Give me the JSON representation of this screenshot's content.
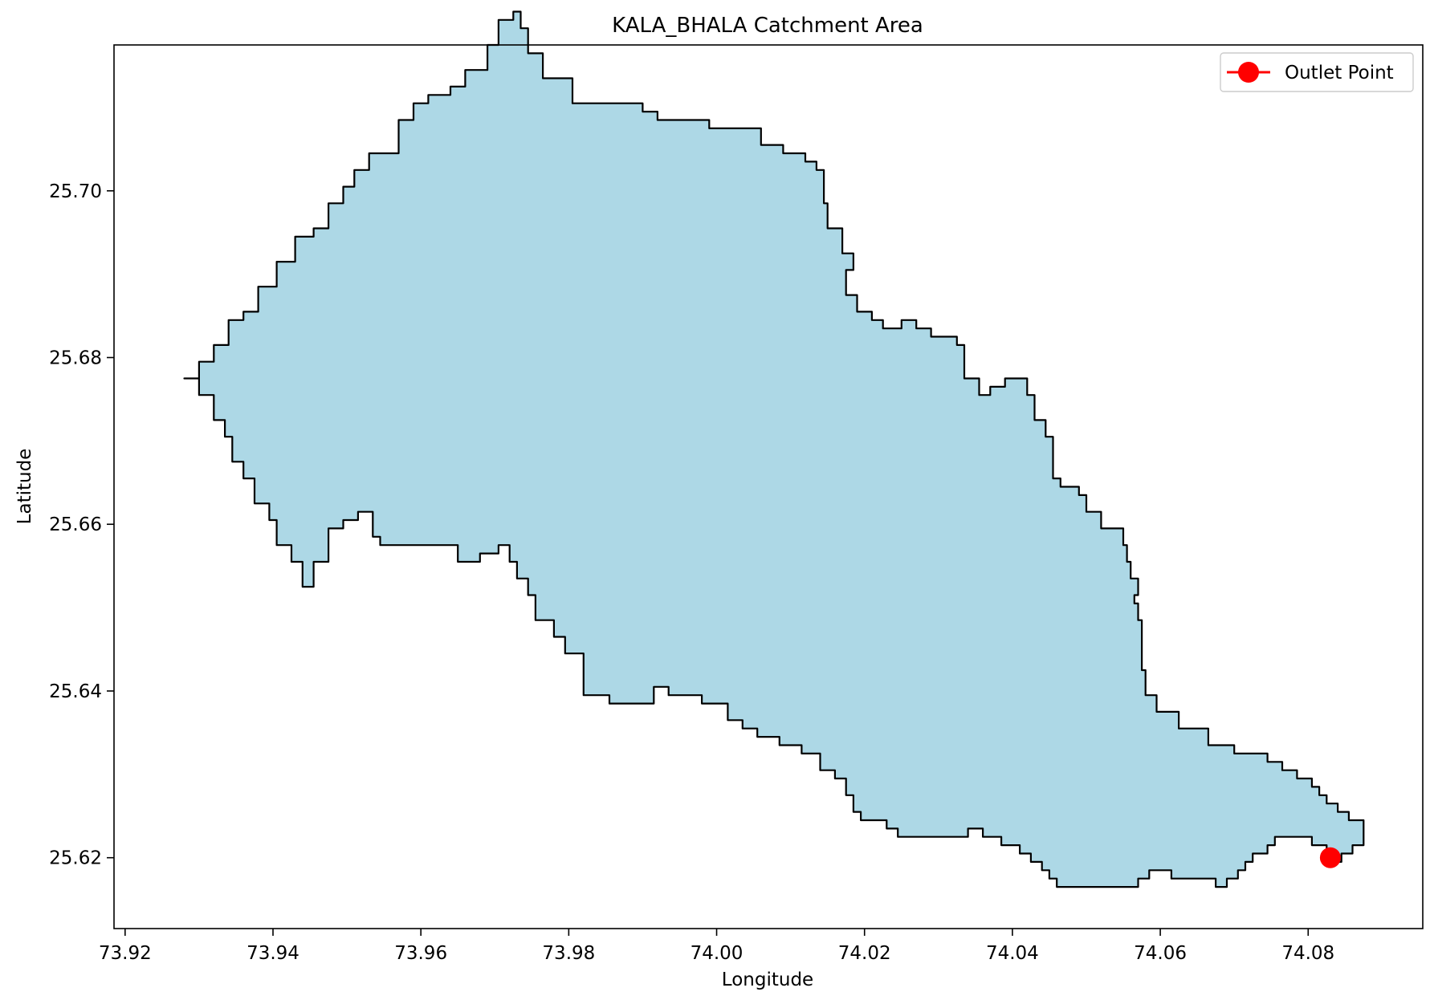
{
  "figure": {
    "title": "KALA_BHALA Catchment Area",
    "xlabel": "Longitude",
    "ylabel": "Latitude"
  },
  "colors": {
    "catchment_fill": "#add8e6",
    "catchment_edge": "#000000",
    "outlet": "#ff0000"
  },
  "map": {
    "xlim": [
      73.9185,
      74.0955
    ],
    "ylim": [
      25.6115,
      25.7175
    ],
    "xticks": [
      73.92,
      73.94,
      73.96,
      73.98,
      74.0,
      74.02,
      74.04,
      74.06,
      74.08
    ],
    "xtick_labels": [
      "73.92",
      "73.94",
      "73.96",
      "73.98",
      "74.00",
      "74.02",
      "74.04",
      "74.06",
      "74.08"
    ],
    "yticks": [
      25.62,
      25.64,
      25.66,
      25.68,
      25.7
    ],
    "ytick_labels": [
      "25.62",
      "25.64",
      "25.66",
      "25.68",
      "25.70"
    ],
    "legend": {
      "position": "top-right",
      "label": "Outlet Point"
    },
    "outlet_point": {
      "lon": 74.083,
      "lat": 25.62
    },
    "boundary": [
      [
        73.928,
        25.6775
      ],
      [
        73.93,
        25.6795
      ],
      [
        73.932,
        25.6815
      ],
      [
        73.934,
        25.6845
      ],
      [
        73.936,
        25.6855
      ],
      [
        73.938,
        25.6885
      ],
      [
        73.9405,
        25.6915
      ],
      [
        73.943,
        25.6945
      ],
      [
        73.9455,
        25.6955
      ],
      [
        73.9475,
        25.6985
      ],
      [
        73.9495,
        25.7005
      ],
      [
        73.951,
        25.7025
      ],
      [
        73.953,
        25.7045
      ],
      [
        73.957,
        25.7085
      ],
      [
        73.959,
        25.7105
      ],
      [
        73.961,
        25.7115
      ],
      [
        73.964,
        25.7125
      ],
      [
        73.966,
        25.7145
      ],
      [
        73.969,
        25.7175
      ],
      [
        73.9705,
        25.7205
      ],
      [
        73.9725,
        25.7215
      ],
      [
        73.9735,
        25.7195
      ],
      [
        73.9745,
        25.7165
      ],
      [
        73.9765,
        25.7135
      ],
      [
        73.9805,
        25.7105
      ],
      [
        73.983,
        25.7105
      ],
      [
        73.986,
        25.7105
      ],
      [
        73.99,
        25.7095
      ],
      [
        73.992,
        25.7085
      ],
      [
        73.996,
        25.7085
      ],
      [
        73.999,
        25.7075
      ],
      [
        74.002,
        25.7075
      ],
      [
        74.006,
        25.7055
      ],
      [
        74.009,
        25.7045
      ],
      [
        74.012,
        25.7035
      ],
      [
        74.0135,
        25.7025
      ],
      [
        74.0145,
        25.6985
      ],
      [
        74.015,
        25.6955
      ],
      [
        74.017,
        25.6925
      ],
      [
        74.0185,
        25.6905
      ],
      [
        74.0175,
        25.6875
      ],
      [
        74.019,
        25.6855
      ],
      [
        74.021,
        25.6845
      ],
      [
        74.0225,
        25.6835
      ],
      [
        74.024,
        25.6835
      ],
      [
        74.025,
        25.6845
      ],
      [
        74.027,
        25.6835
      ],
      [
        74.029,
        25.6825
      ],
      [
        74.031,
        25.6825
      ],
      [
        74.0325,
        25.6815
      ],
      [
        74.0335,
        25.6795
      ],
      [
        74.0335,
        25.6775
      ],
      [
        74.0355,
        25.6755
      ],
      [
        74.037,
        25.6765
      ],
      [
        74.039,
        25.6775
      ],
      [
        74.041,
        25.6775
      ],
      [
        74.042,
        25.6755
      ],
      [
        74.043,
        25.6725
      ],
      [
        74.0445,
        25.6705
      ],
      [
        74.0455,
        25.6675
      ],
      [
        74.0455,
        25.6655
      ],
      [
        74.0465,
        25.6645
      ],
      [
        74.049,
        25.6635
      ],
      [
        74.05,
        25.6615
      ],
      [
        74.052,
        25.6595
      ],
      [
        74.055,
        25.6575
      ],
      [
        74.0555,
        25.6555
      ],
      [
        74.056,
        25.6535
      ],
      [
        74.057,
        25.6515
      ],
      [
        74.0565,
        25.6505
      ],
      [
        74.057,
        25.6485
      ],
      [
        74.0575,
        25.6455
      ],
      [
        74.0575,
        25.6425
      ],
      [
        74.058,
        25.6395
      ],
      [
        74.0595,
        25.6375
      ],
      [
        74.0625,
        25.6355
      ],
      [
        74.0645,
        25.6355
      ],
      [
        74.0665,
        25.6335
      ],
      [
        74.068,
        25.6335
      ],
      [
        74.07,
        25.6325
      ],
      [
        74.0725,
        25.6325
      ],
      [
        74.0745,
        25.6315
      ],
      [
        74.0765,
        25.6305
      ],
      [
        74.0785,
        25.6295
      ],
      [
        74.0805,
        25.6285
      ],
      [
        74.0815,
        25.6275
      ],
      [
        74.0825,
        25.6265
      ],
      [
        74.084,
        25.6255
      ],
      [
        74.0855,
        25.6245
      ],
      [
        74.0875,
        25.6225
      ],
      [
        74.0875,
        25.6215
      ],
      [
        74.086,
        25.6205
      ],
      [
        74.0845,
        25.6195
      ],
      [
        74.0835,
        25.6205
      ],
      [
        74.0825,
        25.6215
      ],
      [
        74.0805,
        25.6225
      ],
      [
        74.077,
        25.6225
      ],
      [
        74.0755,
        25.6215
      ],
      [
        74.0745,
        25.6205
      ],
      [
        74.0725,
        25.6195
      ],
      [
        74.0715,
        25.6185
      ],
      [
        74.0705,
        25.6175
      ],
      [
        74.069,
        25.6165
      ],
      [
        74.0675,
        25.6175
      ],
      [
        74.0655,
        25.6175
      ],
      [
        74.063,
        25.6175
      ],
      [
        74.0615,
        25.6185
      ],
      [
        74.0595,
        25.6185
      ],
      [
        74.0585,
        25.6175
      ],
      [
        74.057,
        25.6165
      ],
      [
        74.055,
        25.6165
      ],
      [
        74.052,
        25.6165
      ],
      [
        74.0485,
        25.6165
      ],
      [
        74.046,
        25.6175
      ],
      [
        74.045,
        25.6185
      ],
      [
        74.044,
        25.6195
      ],
      [
        74.0425,
        25.6205
      ],
      [
        74.041,
        25.6215
      ],
      [
        74.0385,
        25.6225
      ],
      [
        74.036,
        25.6235
      ],
      [
        74.034,
        25.6225
      ],
      [
        74.032,
        25.6225
      ],
      [
        74.03,
        25.6225
      ],
      [
        74.0285,
        25.6225
      ],
      [
        74.027,
        25.6225
      ],
      [
        74.0255,
        25.6225
      ],
      [
        74.0245,
        25.6235
      ],
      [
        74.023,
        25.6245
      ],
      [
        74.021,
        25.6245
      ],
      [
        74.0195,
        25.6255
      ],
      [
        74.0185,
        25.6275
      ],
      [
        74.0175,
        25.6295
      ],
      [
        74.016,
        25.6305
      ],
      [
        74.014,
        25.6325
      ],
      [
        74.0115,
        25.6335
      ],
      [
        74.0085,
        25.6345
      ],
      [
        74.0055,
        25.6355
      ],
      [
        74.0035,
        25.6365
      ],
      [
        74.0015,
        25.6385
      ],
      [
        73.998,
        25.6395
      ],
      [
        73.9955,
        25.6395
      ],
      [
        73.9935,
        25.6405
      ],
      [
        73.9915,
        25.6385
      ],
      [
        73.9885,
        25.6385
      ],
      [
        73.9855,
        25.6395
      ],
      [
        73.982,
        25.6445
      ],
      [
        73.9795,
        25.6465
      ],
      [
        73.978,
        25.6485
      ],
      [
        73.9755,
        25.6515
      ],
      [
        73.9745,
        25.6535
      ],
      [
        73.973,
        25.6555
      ],
      [
        73.972,
        25.6575
      ],
      [
        73.9705,
        25.6565
      ],
      [
        73.968,
        25.6555
      ],
      [
        73.965,
        25.6575
      ],
      [
        73.962,
        25.6575
      ],
      [
        73.96,
        25.6575
      ],
      [
        73.9575,
        25.6575
      ],
      [
        73.9545,
        25.6585
      ],
      [
        73.9535,
        25.6615
      ],
      [
        73.9515,
        25.6605
      ],
      [
        73.9495,
        25.6595
      ],
      [
        73.9475,
        25.6555
      ],
      [
        73.9455,
        25.6525
      ],
      [
        73.944,
        25.6555
      ],
      [
        73.9425,
        25.6575
      ],
      [
        73.9405,
        25.6605
      ],
      [
        73.9395,
        25.6625
      ],
      [
        73.9375,
        25.6655
      ],
      [
        73.936,
        25.6675
      ],
      [
        73.9345,
        25.6705
      ],
      [
        73.9335,
        25.6725
      ],
      [
        73.932,
        25.6755
      ],
      [
        73.93,
        25.6775
      ]
    ]
  }
}
